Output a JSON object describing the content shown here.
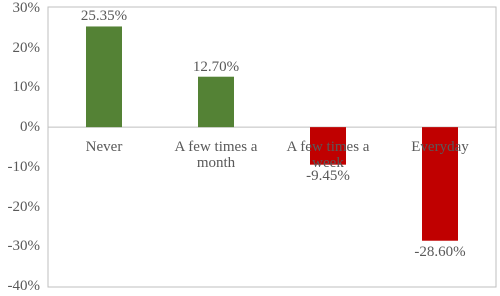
{
  "chart_data": {
    "type": "bar",
    "categories": [
      "Never",
      "A few times a month",
      "A few times a week",
      "Everyday"
    ],
    "values": [
      25.35,
      12.7,
      -9.45,
      -28.6
    ],
    "value_labels": [
      "25.35%",
      "12.70%",
      "-9.45%",
      "-28.60%"
    ],
    "colors": [
      "#548235",
      "#548235",
      "#c00000",
      "#c00000"
    ],
    "ylim": [
      -40,
      30
    ],
    "yticks": [
      {
        "value": -40,
        "label": "-40%"
      },
      {
        "value": -30,
        "label": "-30%"
      },
      {
        "value": -20,
        "label": "-20%"
      },
      {
        "value": -10,
        "label": "-10%"
      },
      {
        "value": 0,
        "label": "0%"
      },
      {
        "value": 10,
        "label": "10%"
      },
      {
        "value": 20,
        "label": "20%"
      },
      {
        "value": 30,
        "label": "30%"
      }
    ],
    "grid": false
  }
}
